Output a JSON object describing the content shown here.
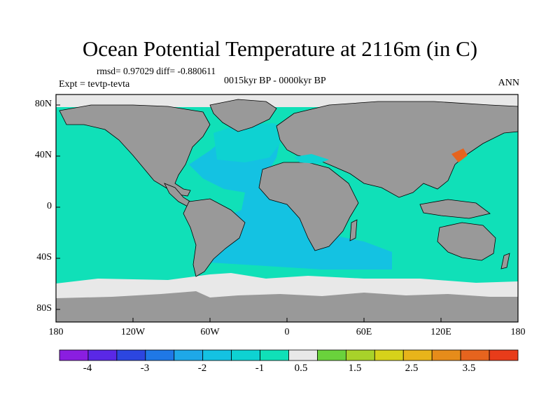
{
  "title": "Ocean Potential Temperature at 2116m (in C)",
  "stats": "rmsd= 0.97029 diff= -0.880611",
  "period": "0015kyr BP - 0000kyr BP",
  "experiment": "Expt = tevtp-tevta",
  "season": "ANN",
  "y_ticks": [
    "80N",
    "40N",
    "0",
    "40S",
    "80S"
  ],
  "x_ticks": [
    "180",
    "120W",
    "60W",
    "0",
    "60E",
    "120E",
    "180"
  ],
  "colorbar": {
    "colors": [
      "#8a1ee0",
      "#5a28e6",
      "#2c46e0",
      "#1f78e6",
      "#1ea8e8",
      "#14c2e2",
      "#0ed2d2",
      "#10e0b8",
      "#e8e8e8",
      "#6ad23c",
      "#a8d22a",
      "#d6d21a",
      "#e8b41a",
      "#e68c1a",
      "#e6641e",
      "#e83c1a"
    ],
    "tick_labels": [
      "-4",
      "-3",
      "-2",
      "-1",
      "0.5",
      "1.5",
      "2.5",
      "3.5"
    ]
  },
  "colors": {
    "land": "#999999",
    "background_ocean": "#10e0b8",
    "atlantic": "#14c2e2",
    "north_atlantic": "#0ed2d2",
    "no_change": "#e8e8e8",
    "anomaly_positive": "#e6641e"
  }
}
